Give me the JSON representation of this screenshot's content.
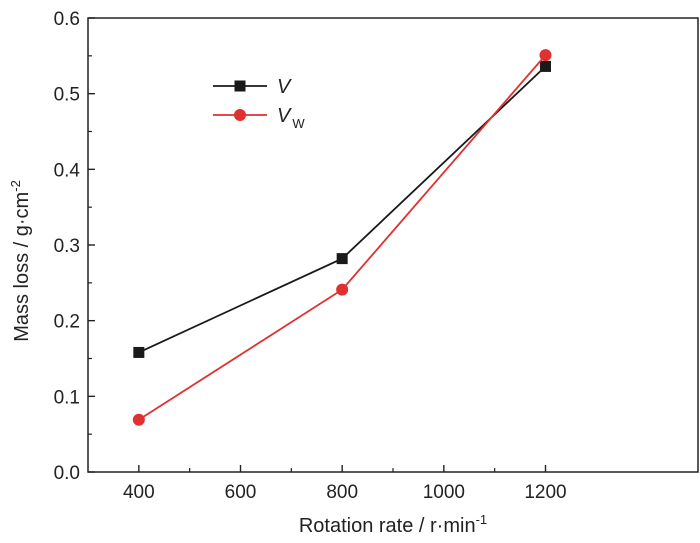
{
  "chart_data": {
    "type": "line",
    "title": "",
    "xlabel": "Rotation rate / r·min",
    "xlabel_sup": "-1",
    "ylabel": "Mass loss / g·cm",
    "ylabel_sup": "-2",
    "xlim": [
      300,
      1500
    ],
    "ylim": [
      0.0,
      0.6
    ],
    "xticks": [
      400,
      600,
      800,
      1000,
      1200
    ],
    "xtick_labels": [
      "400",
      "600",
      "800",
      "1000",
      "1200"
    ],
    "yticks": [
      0.0,
      0.1,
      0.2,
      0.3,
      0.4,
      0.5,
      0.6
    ],
    "ytick_labels": [
      "0.0",
      "0.1",
      "0.2",
      "0.3",
      "0.4",
      "0.5",
      "0.6"
    ],
    "grid": false,
    "legend_position": "top-left",
    "x": [
      400,
      800,
      1200
    ],
    "series": [
      {
        "name": "V",
        "name_sub": "",
        "color": "#1a1a1a",
        "marker": "square",
        "values": [
          0.158,
          0.282,
          0.536
        ]
      },
      {
        "name": "V",
        "name_sub": "W",
        "color": "#e03030",
        "marker": "circle",
        "values": [
          0.069,
          0.241,
          0.551
        ]
      }
    ]
  }
}
